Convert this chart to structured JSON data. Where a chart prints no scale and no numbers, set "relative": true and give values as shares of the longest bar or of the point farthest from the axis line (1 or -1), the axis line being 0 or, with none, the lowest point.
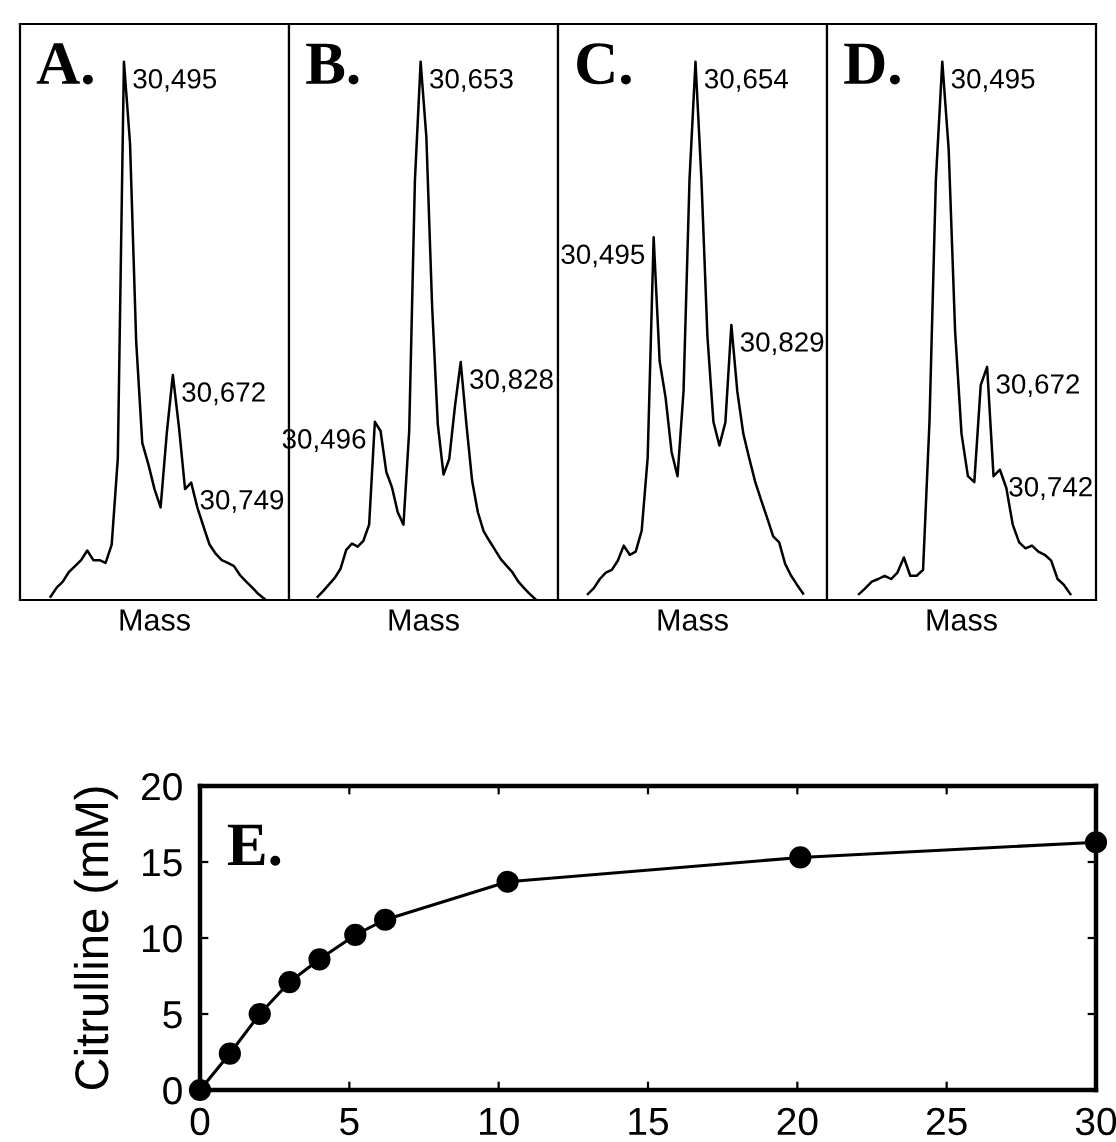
{
  "chart_data": [
    {
      "type": "line",
      "title": "A.",
      "xlabel": "Mass",
      "relative": true,
      "color": "#000000",
      "categories": [
        null,
        null,
        null,
        null,
        null,
        null,
        null,
        null,
        null,
        null,
        null,
        null,
        null,
        null,
        null,
        null,
        null,
        null,
        null,
        null,
        null,
        null,
        null,
        null,
        null,
        null,
        null,
        null,
        null,
        null,
        null,
        null,
        null,
        null,
        null,
        null
      ],
      "values": [
        0.006,
        0.023,
        0.034,
        0.052,
        0.063,
        0.074,
        0.092,
        0.074,
        0.074,
        0.069,
        0.103,
        0.263,
        1,
        0.848,
        0.481,
        0.292,
        0.252,
        0.206,
        0.172,
        0.309,
        0.418,
        0.321,
        0.206,
        0.218,
        0.172,
        0.137,
        0.103,
        0.086,
        0.074,
        0.069,
        0.063,
        0.046,
        0.034,
        0.023,
        0.011,
        0.002
      ],
      "annotations": [
        "30,495",
        "30,672",
        "30,749"
      ]
    },
    {
      "type": "line",
      "title": "B.",
      "xlabel": "Mass",
      "relative": true,
      "color": "#000000",
      "categories": [
        null,
        null,
        null,
        null,
        null,
        null,
        null,
        null,
        null,
        null,
        null,
        null,
        null,
        null,
        null,
        null,
        null,
        null,
        null,
        null,
        null,
        null,
        null,
        null,
        null,
        null,
        null,
        null,
        null,
        null,
        null,
        null,
        null,
        null,
        null,
        null,
        null,
        null,
        null
      ],
      "values": [
        0.006,
        0.017,
        0.029,
        0.041,
        0.058,
        0.093,
        0.105,
        0.099,
        0.11,
        0.14,
        0.331,
        0.314,
        0.238,
        0.209,
        0.163,
        0.14,
        0.314,
        0.779,
        1,
        0.86,
        0.547,
        0.326,
        0.233,
        0.262,
        0.36,
        0.442,
        0.326,
        0.221,
        0.163,
        0.128,
        0.11,
        0.093,
        0.076,
        0.064,
        0.052,
        0.035,
        0.023,
        0.012,
        0.002
      ],
      "annotations": [
        "30,653",
        "30,828",
        "30,496"
      ]
    },
    {
      "type": "line",
      "title": "C.",
      "xlabel": "Mass",
      "relative": true,
      "color": "#000000",
      "categories": [
        null,
        null,
        null,
        null,
        null,
        null,
        null,
        null,
        null,
        null,
        null,
        null,
        null,
        null,
        null,
        null,
        null,
        null,
        null,
        null,
        null,
        null,
        null,
        null,
        null,
        null,
        null,
        null,
        null,
        null,
        null,
        null,
        null,
        null,
        null,
        null,
        null
      ],
      "values": [
        0.011,
        0.022,
        0.039,
        0.051,
        0.056,
        0.073,
        0.101,
        0.084,
        0.09,
        0.129,
        0.264,
        0.674,
        0.444,
        0.376,
        0.275,
        0.23,
        0.388,
        0.781,
        1,
        0.78,
        0.489,
        0.331,
        0.287,
        0.33,
        0.511,
        0.387,
        0.309,
        0.263,
        0.219,
        0.185,
        0.152,
        0.118,
        0.107,
        0.067,
        0.045,
        0.028,
        0.012
      ],
      "annotations": [
        "30,654",
        "30,495",
        "30,829"
      ]
    },
    {
      "type": "line",
      "title": "D.",
      "xlabel": "Mass",
      "relative": true,
      "color": "#000000",
      "categories": [
        null,
        null,
        null,
        null,
        null,
        null,
        null,
        null,
        null,
        null,
        null,
        null,
        null,
        null,
        null,
        null,
        null,
        null,
        null,
        null,
        null,
        null,
        null,
        null,
        null,
        null,
        null,
        null,
        null,
        null,
        null,
        null,
        null,
        null
      ],
      "values": [
        0.011,
        0.022,
        0.034,
        0.039,
        0.045,
        0.039,
        0.051,
        0.079,
        0.045,
        0.045,
        0.056,
        0.331,
        0.781,
        1,
        0.837,
        0.5,
        0.309,
        0.23,
        0.219,
        0.399,
        0.433,
        0.23,
        0.242,
        0.208,
        0.14,
        0.107,
        0.096,
        0.101,
        0.09,
        0.084,
        0.073,
        0.039,
        0.028,
        0.011
      ],
      "annotations": [
        "30,495",
        "30,672",
        "30,742"
      ]
    },
    {
      "type": "line",
      "title": "E.",
      "ylabel": "Citrulline (mM)",
      "color": "#000000",
      "marker": "circle",
      "x": [
        0,
        1,
        2,
        3,
        4,
        5.2,
        6.2,
        10.3,
        20.1,
        30
      ],
      "values": [
        0,
        2.4,
        5,
        7.1,
        8.6,
        10.2,
        11.2,
        13.7,
        15.3,
        16.3
      ],
      "xlim": [
        0,
        30
      ],
      "ylim": [
        0,
        20
      ],
      "xticks": [
        0,
        5,
        10,
        15,
        20,
        25,
        30
      ],
      "yticks": [
        0,
        5,
        10,
        15,
        20
      ]
    }
  ]
}
